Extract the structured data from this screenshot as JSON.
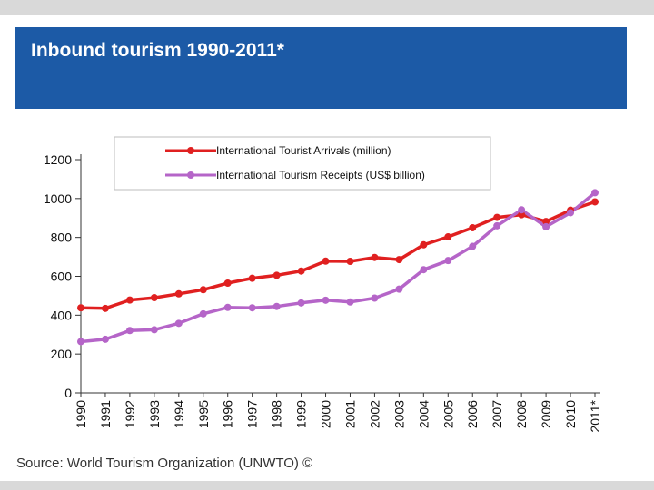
{
  "slide": {
    "title": "Inbound tourism 1990-2011*",
    "source": "Source: World Tourism Organization (UNWTO) ©"
  },
  "colors": {
    "header_bg": "#1c5aa6",
    "arrivals": "#e02020",
    "receipts": "#b565c8"
  },
  "chart_data": {
    "type": "line",
    "title": "",
    "xlabel": "",
    "ylabel": "",
    "ylim": [
      0,
      1200
    ],
    "yticks": [
      0,
      200,
      400,
      600,
      800,
      1000,
      1200
    ],
    "categories": [
      "1990",
      "1991",
      "1992",
      "1993",
      "1994",
      "1995",
      "1996",
      "1997",
      "1998",
      "1999",
      "2000",
      "2001",
      "2002",
      "2003",
      "2004",
      "2005",
      "2006",
      "2007",
      "2008",
      "2009",
      "2010",
      "2011*"
    ],
    "legend_position": "top",
    "series": [
      {
        "name": "International Tourist Arrivals (million)",
        "color": "#e02020",
        "values": [
          438,
          435,
          478,
          490,
          510,
          531,
          565,
          590,
          605,
          627,
          678,
          677,
          697,
          686,
          762,
          803,
          850,
          903,
          917,
          882,
          940,
          983
        ]
      },
      {
        "name": "International Tourism Receipts (US$ billion)",
        "color": "#b565c8",
        "values": [
          264,
          276,
          321,
          325,
          358,
          407,
          440,
          438,
          445,
          463,
          477,
          468,
          488,
          534,
          634,
          681,
          754,
          860,
          942,
          855,
          927,
          1030
        ]
      }
    ]
  }
}
